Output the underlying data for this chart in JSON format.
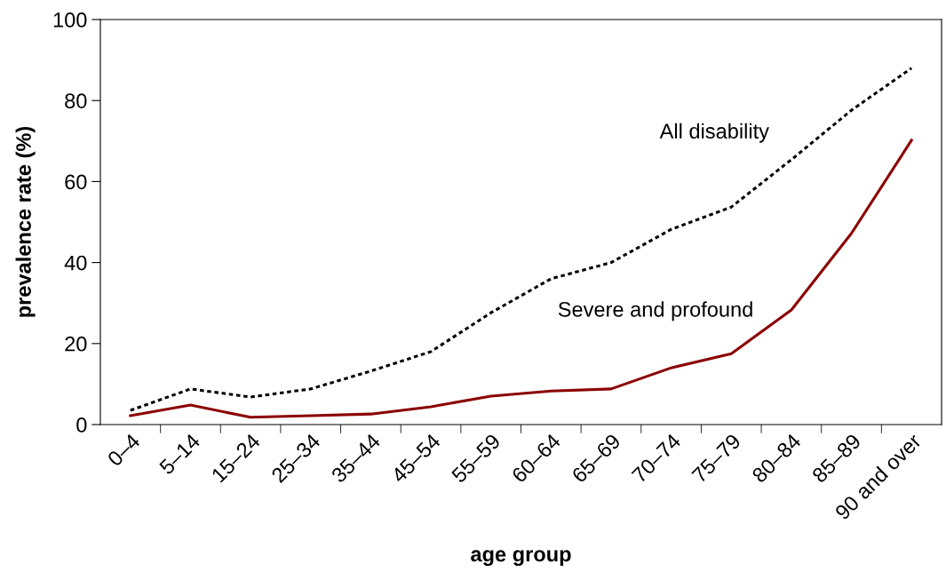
{
  "chart_data": {
    "type": "line",
    "xlabel": "age group",
    "ylabel": "prevalence rate (%)",
    "categories": [
      "0–4",
      "5–14",
      "15–24",
      "25–34",
      "35–44",
      "45–54",
      "55–59",
      "60–64",
      "65–69",
      "70–74",
      "75–79",
      "80–84",
      "85–89",
      "90 and over"
    ],
    "series": [
      {
        "name": "All disability",
        "color": "#000000",
        "line_style": "dotted",
        "values": [
          3.5,
          8.8,
          6.8,
          8.8,
          13.2,
          18,
          27.6,
          36,
          40,
          48.2,
          53.7,
          65.4,
          77.6,
          88
        ]
      },
      {
        "name": "Severe and profound",
        "color": "#8b0000",
        "line_style": "solid",
        "values": [
          2.2,
          4.8,
          1.8,
          2.2,
          2.6,
          4.4,
          7,
          8.3,
          8.8,
          14,
          17.5,
          28.3,
          47.2,
          70.2
        ]
      }
    ],
    "ylim": [
      0,
      100
    ],
    "yticks": [
      0,
      20,
      40,
      60,
      80,
      100
    ],
    "grid": false,
    "legend": false,
    "marker": "none"
  }
}
